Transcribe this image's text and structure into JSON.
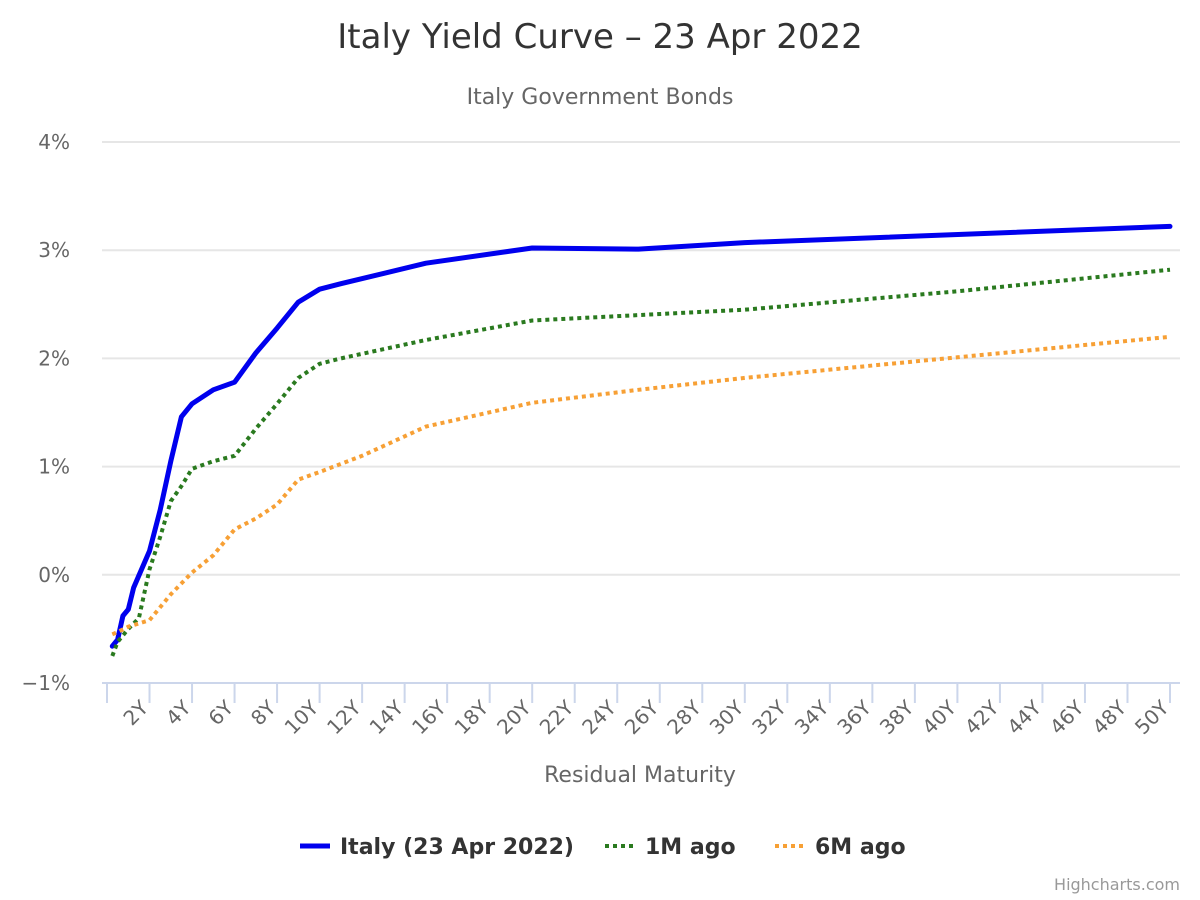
{
  "chart_data": {
    "type": "line",
    "title": "Italy Yield Curve – 23 Apr 2022",
    "subtitle": "Italy Government Bonds",
    "xlabel": "Residual Maturity",
    "ylabel": "",
    "x_unit": "years",
    "xlim": [
      0,
      50
    ],
    "ylim": [
      -1,
      4
    ],
    "y_ticks": [
      -1,
      0,
      1,
      2,
      3,
      4
    ],
    "y_tick_labels": [
      "−1%",
      "0%",
      "1%",
      "2%",
      "3%",
      "4%"
    ],
    "x_ticks": [
      2,
      4,
      6,
      8,
      10,
      12,
      14,
      16,
      18,
      20,
      22,
      24,
      26,
      28,
      30,
      32,
      34,
      36,
      38,
      40,
      42,
      44,
      46,
      48,
      50
    ],
    "x_tick_labels": [
      "2Y",
      "4Y",
      "6Y",
      "8Y",
      "10Y",
      "12Y",
      "14Y",
      "16Y",
      "18Y",
      "20Y",
      "22Y",
      "24Y",
      "26Y",
      "28Y",
      "30Y",
      "32Y",
      "34Y",
      "36Y",
      "38Y",
      "40Y",
      "42Y",
      "44Y",
      "46Y",
      "48Y",
      "50Y"
    ],
    "grid": "horizontal",
    "legend_position": "bottom-center",
    "series": [
      {
        "name": "Italy (23 Apr 2022)",
        "color": "#0000ee",
        "style": "solid",
        "points": [
          [
            0.25,
            -0.66
          ],
          [
            0.5,
            -0.6
          ],
          [
            0.75,
            -0.38
          ],
          [
            1,
            -0.32
          ],
          [
            1.25,
            -0.12
          ],
          [
            2,
            0.22
          ],
          [
            2.5,
            0.6
          ],
          [
            3,
            1.05
          ],
          [
            3.5,
            1.46
          ],
          [
            4,
            1.58
          ],
          [
            5,
            1.71
          ],
          [
            6,
            1.78
          ],
          [
            7,
            2.05
          ],
          [
            8,
            2.28
          ],
          [
            9,
            2.52
          ],
          [
            10,
            2.64
          ],
          [
            11,
            2.69
          ],
          [
            15,
            2.88
          ],
          [
            20,
            3.02
          ],
          [
            25,
            3.01
          ],
          [
            30,
            3.07
          ],
          [
            50,
            3.22
          ]
        ]
      },
      {
        "name": "1M ago",
        "color": "#2a7a1f",
        "style": "dotted",
        "points": [
          [
            0.25,
            -0.75
          ],
          [
            0.5,
            -0.62
          ],
          [
            1,
            -0.5
          ],
          [
            1.5,
            -0.4
          ],
          [
            2,
            0.05
          ],
          [
            2.5,
            0.35
          ],
          [
            3,
            0.68
          ],
          [
            3.5,
            0.82
          ],
          [
            4,
            0.98
          ],
          [
            5,
            1.05
          ],
          [
            6,
            1.1
          ],
          [
            7,
            1.35
          ],
          [
            8,
            1.58
          ],
          [
            9,
            1.82
          ],
          [
            10,
            1.95
          ],
          [
            11,
            2.0
          ],
          [
            15,
            2.17
          ],
          [
            20,
            2.35
          ],
          [
            25,
            2.4
          ],
          [
            30,
            2.45
          ],
          [
            40,
            2.62
          ],
          [
            50,
            2.82
          ]
        ]
      },
      {
        "name": "6M ago",
        "color": "#f7a035",
        "style": "dotted",
        "points": [
          [
            0.25,
            -0.55
          ],
          [
            0.5,
            -0.53
          ],
          [
            1,
            -0.48
          ],
          [
            2,
            -0.42
          ],
          [
            3,
            -0.18
          ],
          [
            4,
            0.02
          ],
          [
            5,
            0.18
          ],
          [
            6,
            0.42
          ],
          [
            7,
            0.52
          ],
          [
            8,
            0.65
          ],
          [
            9,
            0.88
          ],
          [
            10,
            0.95
          ],
          [
            12,
            1.1
          ],
          [
            15,
            1.37
          ],
          [
            20,
            1.59
          ],
          [
            25,
            1.71
          ],
          [
            30,
            1.82
          ],
          [
            40,
            2.01
          ],
          [
            50,
            2.2
          ]
        ]
      }
    ],
    "credits": "Highcharts.com"
  }
}
